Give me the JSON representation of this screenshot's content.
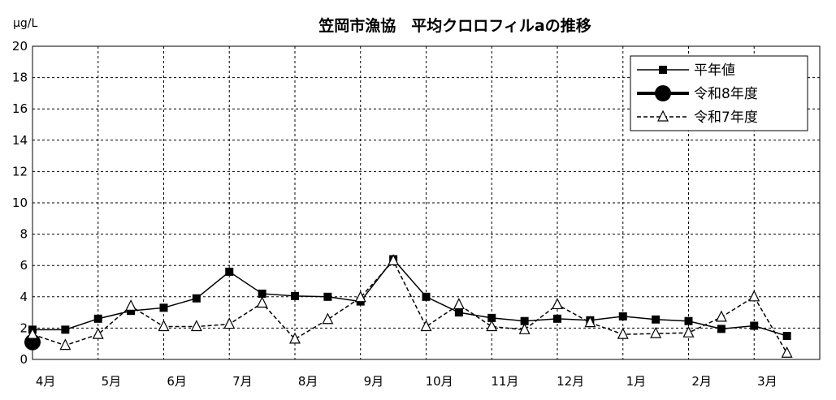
{
  "chart_data": {
    "type": "line",
    "title": "笠岡市漁協　平均クロロフィルaの推移",
    "ylabel": "μg/L",
    "ylim": [
      0,
      20
    ],
    "yticks": [
      0,
      2,
      4,
      6,
      8,
      10,
      12,
      14,
      16,
      18,
      20
    ],
    "categories": [
      "4月",
      "5月",
      "6月",
      "7月",
      "8月",
      "9月",
      "10月",
      "11月",
      "12月",
      "1月",
      "2月",
      "3月"
    ],
    "grid": true,
    "legend_position": "top-right",
    "series": [
      {
        "name": "平年値",
        "style": "solid",
        "marker": "square",
        "color": "#000000",
        "points": [
          {
            "x": 4.0,
            "y": 1.9
          },
          {
            "x": 4.5,
            "y": 1.9
          },
          {
            "x": 5.0,
            "y": 2.6
          },
          {
            "x": 5.5,
            "y": 3.1
          },
          {
            "x": 6.0,
            "y": 3.3
          },
          {
            "x": 6.5,
            "y": 3.9
          },
          {
            "x": 7.0,
            "y": 5.6
          },
          {
            "x": 7.5,
            "y": 4.2
          },
          {
            "x": 8.0,
            "y": 4.05
          },
          {
            "x": 8.5,
            "y": 4.0
          },
          {
            "x": 9.0,
            "y": 3.7
          },
          {
            "x": 9.5,
            "y": 6.4
          },
          {
            "x": 10.0,
            "y": 4.0
          },
          {
            "x": 10.5,
            "y": 3.0
          },
          {
            "x": 11.0,
            "y": 2.65
          },
          {
            "x": 11.5,
            "y": 2.45
          },
          {
            "x": 12.0,
            "y": 2.6
          },
          {
            "x": 12.5,
            "y": 2.5
          },
          {
            "x": 13.0,
            "y": 2.75
          },
          {
            "x": 13.5,
            "y": 2.55
          },
          {
            "x": 14.0,
            "y": 2.45
          },
          {
            "x": 14.5,
            "y": 1.95
          },
          {
            "x": 15.0,
            "y": 2.15
          },
          {
            "x": 15.5,
            "y": 1.5
          }
        ]
      },
      {
        "name": "令和8年度",
        "style": "thick",
        "marker": "circle",
        "color": "#000000",
        "points": [
          {
            "x": 4.0,
            "y": 1.1
          }
        ]
      },
      {
        "name": "令和7年度",
        "style": "dashed",
        "marker": "triangle",
        "color": "#000000",
        "points": [
          {
            "x": 4.0,
            "y": 1.6
          },
          {
            "x": 4.5,
            "y": 0.9
          },
          {
            "x": 5.0,
            "y": 1.6
          },
          {
            "x": 5.5,
            "y": 3.4
          },
          {
            "x": 6.0,
            "y": 2.1
          },
          {
            "x": 6.5,
            "y": 2.1
          },
          {
            "x": 7.0,
            "y": 2.25
          },
          {
            "x": 7.5,
            "y": 3.6
          },
          {
            "x": 8.0,
            "y": 1.3
          },
          {
            "x": 8.5,
            "y": 2.55
          },
          {
            "x": 9.0,
            "y": 3.95
          },
          {
            "x": 9.5,
            "y": 6.3
          },
          {
            "x": 10.0,
            "y": 2.1
          },
          {
            "x": 10.5,
            "y": 3.5
          },
          {
            "x": 11.0,
            "y": 2.1
          },
          {
            "x": 11.5,
            "y": 1.9
          },
          {
            "x": 12.0,
            "y": 3.5
          },
          {
            "x": 12.5,
            "y": 2.35
          },
          {
            "x": 13.0,
            "y": 1.6
          },
          {
            "x": 13.5,
            "y": 1.65
          },
          {
            "x": 14.0,
            "y": 1.7
          },
          {
            "x": 14.5,
            "y": 2.7
          },
          {
            "x": 15.0,
            "y": 4.0
          },
          {
            "x": 15.5,
            "y": 0.4
          }
        ]
      }
    ]
  }
}
